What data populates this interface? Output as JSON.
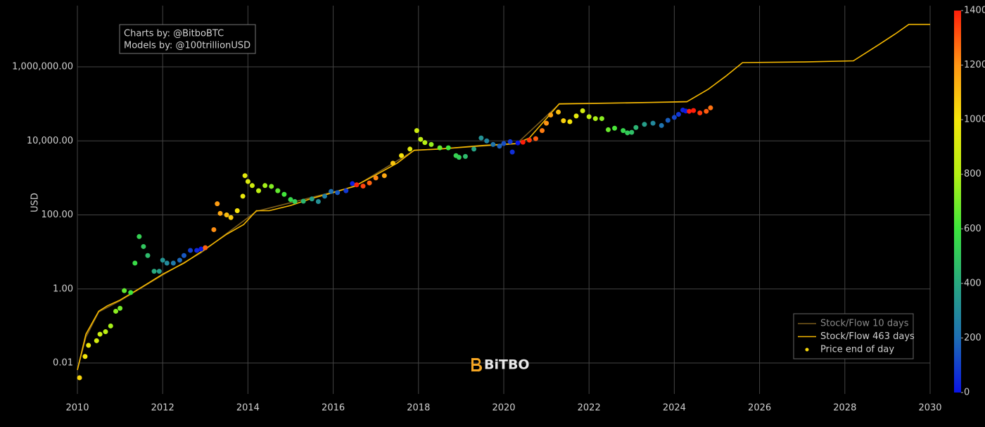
{
  "chart_data": {
    "type": "scatter",
    "y_label": "USD",
    "annotation": [
      "Charts by: @BitboBTC",
      "Models by: @100trillionUSD"
    ],
    "watermark": "BiTBO",
    "log_y": true,
    "grid": true,
    "legend": "bottom-right",
    "xlim": [
      2010,
      2030
    ],
    "xticks": [
      2010,
      2012,
      2014,
      2016,
      2018,
      2020,
      2022,
      2024,
      2026,
      2028,
      2030
    ],
    "ylim": [
      0.00146,
      45000000
    ],
    "yticks": [
      0.01,
      {
        "value": 1,
        "label": "1.00"
      },
      {
        "value": 100,
        "label": "100.00"
      },
      {
        "value": 10000,
        "label": "10,000.00"
      },
      {
        "value": 1000000,
        "label": "1,000,000.00"
      }
    ],
    "colorbar": {
      "lim": [
        0,
        1400
      ],
      "ticks": [
        0,
        200,
        400,
        600,
        800,
        1000,
        1200,
        1400
      ],
      "colors": [
        "#0a14e6",
        "#1e6eb4",
        "#28a880",
        "#3ce63c",
        "#b4f014",
        "#f5e60a",
        "#ff9614",
        "#ff1e0a"
      ]
    },
    "series": [
      {
        "name": "Stock/Flow 10 days",
        "color": "#7a5c1c",
        "x": [
          2010.0,
          2010.2,
          2010.5,
          2011.0,
          2012.0,
          2012.9,
          2014.2,
          2016.5,
          2017.9,
          2020.3,
          2021.3,
          2024.3
        ],
        "values": [
          0.0065,
          0.05,
          0.24,
          0.48,
          2.4,
          9.5,
          125,
          580,
          5500,
          8300,
          98000,
          113000
        ]
      },
      {
        "name": "Stock/Flow 463 days",
        "color": "#f5b800",
        "x": [
          2010.0,
          2010.2,
          2010.5,
          2010.7,
          2011.0,
          2011.5,
          2012.0,
          2012.5,
          2012.9,
          2013.5,
          2013.9,
          2014.2,
          2014.5,
          2015.0,
          2015.5,
          2016.0,
          2016.5,
          2017.0,
          2017.5,
          2017.9,
          2018.5,
          2019.5,
          2020.3,
          2020.6,
          2021.0,
          2021.3,
          2022.5,
          2023.5,
          2024.3,
          2024.8,
          2025.2,
          2025.6,
          2027.0,
          2028.2,
          2028.8,
          2029.2,
          2029.5,
          2030.0
        ],
        "values": [
          0.0065,
          0.06,
          0.25,
          0.35,
          0.5,
          1.1,
          2.5,
          5,
          10,
          30,
          55,
          130,
          130,
          180,
          280,
          400,
          600,
          1200,
          2500,
          5600,
          6000,
          7500,
          8500,
          12000,
          40000,
          100000,
          105000,
          110000,
          115000,
          250000,
          550000,
          1300000,
          1350000,
          1450000,
          4000000,
          8000000,
          14000000,
          14000000
        ]
      },
      {
        "name": "Price end of day",
        "color": "#f5d60a",
        "x": [
          2010.05,
          2010.18,
          2010.26,
          2010.45,
          2010.53,
          2010.66,
          2010.78,
          2010.9,
          2011.0,
          2011.1,
          2011.25,
          2011.35,
          2011.45,
          2011.55,
          2011.65,
          2011.8,
          2011.92,
          2012.0,
          2012.1,
          2012.25,
          2012.4,
          2012.5,
          2012.65,
          2012.8,
          2012.9,
          2013.0,
          2013.2,
          2013.28,
          2013.35,
          2013.5,
          2013.6,
          2013.75,
          2013.88,
          2013.93,
          2014.0,
          2014.1,
          2014.25,
          2014.4,
          2014.55,
          2014.7,
          2014.85,
          2015.0,
          2015.1,
          2015.3,
          2015.5,
          2015.65,
          2015.8,
          2015.95,
          2016.1,
          2016.3,
          2016.45,
          2016.55,
          2016.7,
          2016.85,
          2017.0,
          2017.2,
          2017.4,
          2017.6,
          2017.8,
          2017.96,
          2018.05,
          2018.15,
          2018.3,
          2018.5,
          2018.7,
          2018.88,
          2018.95,
          2019.1,
          2019.3,
          2019.47,
          2019.6,
          2019.75,
          2019.9,
          2020.0,
          2020.15,
          2020.2,
          2020.33,
          2020.45,
          2020.6,
          2020.75,
          2020.9,
          2021.0,
          2021.1,
          2021.28,
          2021.4,
          2021.55,
          2021.7,
          2021.85,
          2022.0,
          2022.15,
          2022.3,
          2022.45,
          2022.6,
          2022.8,
          2022.9,
          2023.0,
          2023.1,
          2023.3,
          2023.5,
          2023.7,
          2023.85,
          2024.0,
          2024.1,
          2024.2,
          2024.27,
          2024.35,
          2024.45,
          2024.6,
          2024.75,
          2024.85
        ],
        "values": [
          0.004,
          0.015,
          0.03,
          0.04,
          0.06,
          0.07,
          0.1,
          0.25,
          0.3,
          0.9,
          0.8,
          5,
          26,
          14,
          8,
          3,
          3,
          6,
          5,
          5,
          6,
          8,
          11,
          11,
          12,
          13,
          40,
          200,
          110,
          100,
          85,
          130,
          320,
          1150,
          800,
          620,
          450,
          620,
          590,
          450,
          360,
          260,
          230,
          235,
          270,
          230,
          320,
          430,
          400,
          450,
          700,
          650,
          600,
          730,
          1000,
          1150,
          2500,
          4000,
          6000,
          19000,
          11000,
          9000,
          8000,
          6500,
          6500,
          4000,
          3600,
          3800,
          6000,
          12000,
          10000,
          8000,
          7200,
          8500,
          9500,
          5000,
          8800,
          9200,
          10500,
          11500,
          19000,
          30000,
          50000,
          60000,
          35000,
          33000,
          47000,
          65000,
          45000,
          40000,
          40000,
          20000,
          22000,
          19000,
          16500,
          17000,
          23000,
          28000,
          30000,
          26000,
          36000,
          43000,
          52000,
          68000,
          64000,
          63000,
          66000,
          57000,
          63000,
          78000
        ],
        "color_values": [
          1044,
          996,
          967,
          898,
          869,
          821,
          777,
          734,
          697,
          661,
          606,
          569,
          533,
          496,
          460,
          405,
          361,
          332,
          296,
          241,
          186,
          150,
          95,
          40,
          4,
          1285,
          1212,
          1183,
          1157,
          1102,
          1066,
          1011,
          964,
          945,
          920,
          883,
          829,
          774,
          719,
          664,
          610,
          555,
          518,
          445,
          372,
          318,
          263,
          208,
          153,
          80,
          26,
          1391,
          1336,
          1281,
          1227,
          1154,
          1081,
          1008,
          935,
          876,
          843,
          807,
          752,
          679,
          606,
          540,
          515,
          460,
          387,
          325,
          277,
          223,
          168,
          131,
          77,
          58,
          11,
          1405,
          1351,
          1296,
          1241,
          1205,
          1168,
          1102,
          1059,
          1004,
          949,
          894,
          840,
          785,
          730,
          675,
          621,
          548,
          511,
          475,
          438,
          365,
          292,
          219,
          164,
          110,
          73,
          37,
          11,
          1442,
          1405,
          1351,
          1296,
          1259
        ]
      }
    ]
  }
}
